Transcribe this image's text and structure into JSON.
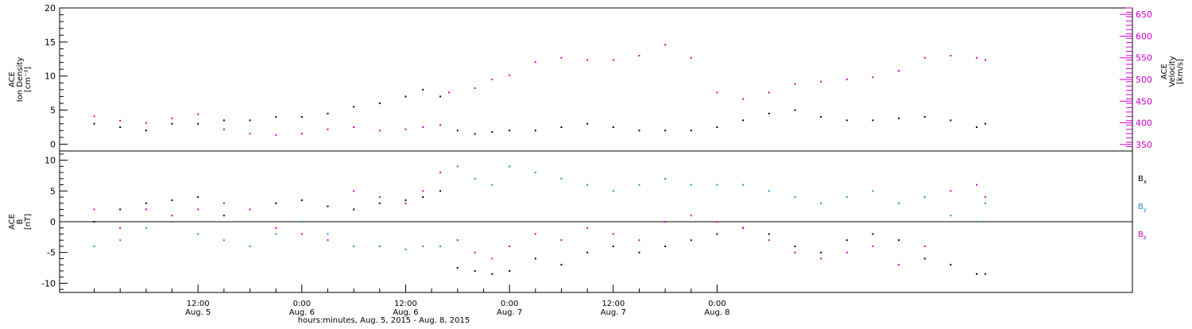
{
  "chart_data": [
    {
      "type": "scatter",
      "panel": "top",
      "ylabel_lines": [
        "ACE",
        "Ion Density",
        "[cm⁻³]"
      ],
      "y2label_lines": [
        "ACE",
        "Velocity",
        "[km/s]"
      ],
      "ylim": [
        -1,
        20
      ],
      "y2lim": [
        335,
        665
      ],
      "yticks": [
        0,
        5,
        10,
        15,
        20
      ],
      "y2ticks": [
        350,
        400,
        450,
        500,
        550,
        600,
        650
      ],
      "series": [
        {
          "axis": "left",
          "color": "#000000",
          "x": [
            0,
            3,
            6,
            9,
            12,
            15,
            18,
            21,
            24,
            27,
            30,
            33,
            36,
            38,
            40,
            42,
            44,
            46,
            48,
            51,
            54,
            57,
            60,
            63,
            66,
            69,
            72,
            75,
            78,
            81,
            84,
            87,
            90,
            93,
            96,
            99,
            102,
            103
          ],
          "y": [
            3,
            2.5,
            2,
            3,
            3,
            3.5,
            3.5,
            4,
            4,
            4.5,
            5.5,
            6,
            7,
            8,
            7,
            2,
            1.5,
            1.8,
            2,
            2,
            2.5,
            3,
            2.5,
            2,
            2,
            2,
            2.5,
            3.5,
            4.5,
            5,
            4,
            3.5,
            3.5,
            3.8,
            4,
            3.5,
            2.5,
            3
          ]
        },
        {
          "axis": "right",
          "color": "#cc00cc",
          "x": [
            0,
            3,
            6,
            9,
            12,
            15,
            18,
            21,
            24,
            27,
            30,
            33,
            36,
            38,
            40,
            41,
            44,
            46,
            48,
            51,
            54,
            57,
            60,
            63,
            66,
            69,
            72,
            75,
            78,
            81,
            84,
            87,
            90,
            93,
            96,
            99,
            102,
            103
          ],
          "y": [
            415,
            405,
            400,
            410,
            420,
            385,
            375,
            372,
            375,
            385,
            390,
            382,
            385,
            390,
            395,
            470,
            480,
            500,
            510,
            540,
            550,
            545,
            545,
            555,
            580,
            550,
            470,
            455,
            470,
            490,
            495,
            500,
            505,
            520,
            550,
            555,
            550,
            545
          ]
        }
      ]
    },
    {
      "type": "scatter",
      "panel": "bottom",
      "ylabel_lines": [
        "ACE",
        "B",
        "[nT]"
      ],
      "ylim": [
        -11.5,
        11.5
      ],
      "yticks": [
        -10,
        -5,
        0,
        5,
        10
      ],
      "legend": [
        {
          "base": "B",
          "sub": "x",
          "color": "#000000"
        },
        {
          "base": "B",
          "sub": "y",
          "color": "#1e88d8"
        },
        {
          "base": "B",
          "sub": "z",
          "color": "#cc00cc"
        }
      ],
      "series": [
        {
          "name": "Bx",
          "color": "#000000",
          "x": [
            0,
            3,
            6,
            9,
            12,
            15,
            18,
            21,
            24,
            27,
            30,
            33,
            36,
            38,
            40,
            42,
            44,
            46,
            48,
            51,
            54,
            57,
            60,
            63,
            66,
            69,
            72,
            75,
            78,
            81,
            84,
            87,
            90,
            93,
            96,
            99,
            102,
            103
          ],
          "y": [
            0,
            2,
            3,
            3.5,
            4,
            1,
            2,
            3,
            3.5,
            2.5,
            2,
            3,
            3.5,
            4,
            5,
            -7.5,
            -8,
            -8.5,
            -8,
            -6,
            -7,
            -5,
            -4,
            -5,
            -4,
            -3,
            -2,
            -1,
            -2,
            -4,
            -5,
            -3,
            -2,
            -3,
            -6,
            -7,
            -8.5,
            -8.5
          ]
        },
        {
          "name": "By",
          "color": "#1e88d8",
          "x": [
            0,
            3,
            6,
            9,
            12,
            15,
            18,
            21,
            24,
            27,
            30,
            33,
            36,
            38,
            40,
            42,
            44,
            46,
            48,
            51,
            54,
            57,
            60,
            63,
            66,
            69,
            72,
            75,
            78,
            81,
            84,
            87,
            90,
            93,
            96,
            99,
            102,
            103
          ],
          "y": [
            -4,
            -3,
            -1,
            1,
            -2,
            -3,
            -4,
            -2,
            0,
            -2,
            -4,
            -4,
            -4.5,
            -4,
            -4,
            9,
            7,
            6,
            9,
            8,
            7,
            6,
            5,
            6,
            7,
            6,
            6,
            6,
            5,
            4,
            3,
            4,
            5,
            3,
            4,
            1,
            0,
            3
          ]
        },
        {
          "name": "Bz",
          "color": "#cc00cc",
          "x": [
            0,
            3,
            6,
            9,
            12,
            15,
            18,
            21,
            24,
            27,
            30,
            33,
            36,
            38,
            40,
            42,
            44,
            46,
            48,
            51,
            54,
            57,
            60,
            63,
            66,
            69,
            72,
            75,
            78,
            81,
            84,
            87,
            90,
            93,
            96,
            99,
            102,
            103
          ],
          "y": [
            2,
            -1,
            2,
            1,
            2,
            3,
            2,
            -1,
            -2,
            -3,
            5,
            4,
            3,
            5,
            8,
            -3,
            -5,
            -6,
            -4,
            -2,
            -3,
            -1,
            -2,
            -3,
            0,
            1,
            0,
            -1,
            -3,
            -5,
            -6,
            -5,
            -4,
            -7,
            -4,
            5,
            6,
            4
          ]
        }
      ]
    }
  ],
  "x_axis": {
    "xlim": [
      -4,
      120
    ],
    "ticks": [
      {
        "x": 12,
        "time": "12:00",
        "date": "Aug. 5"
      },
      {
        "x": 24,
        "time": "0:00",
        "date": "Aug. 6"
      },
      {
        "x": 36,
        "time": "12:00",
        "date": "Aug. 6"
      },
      {
        "x": 48,
        "time": "0:00",
        "date": "Aug. 7"
      },
      {
        "x": 60,
        "time": "12:00",
        "date": "Aug. 7"
      },
      {
        "x": 72,
        "time": "0:00",
        "date": "Aug. 8"
      }
    ],
    "xlabel": "hours:minutes, Aug. 5, 2015 - Aug. 8, 2015"
  },
  "colors": {
    "black": "#000000",
    "blue": "#1e88d8",
    "magenta": "#cc00cc"
  }
}
